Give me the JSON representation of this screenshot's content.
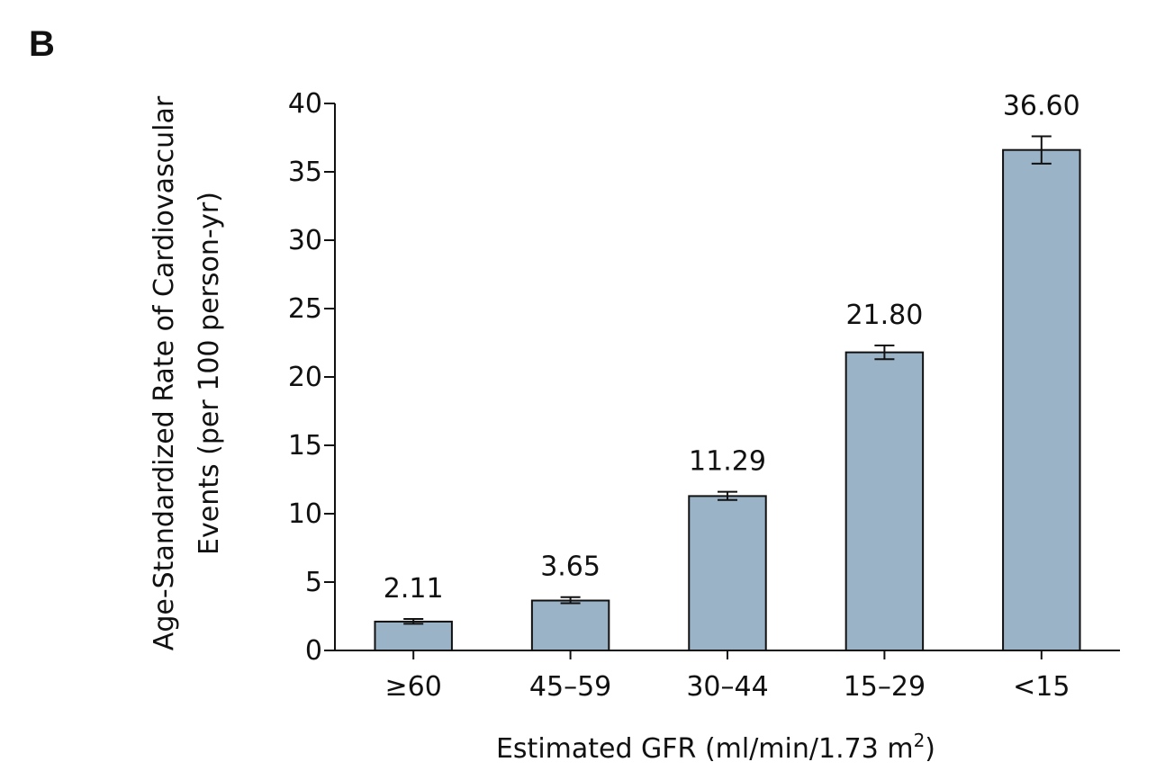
{
  "chart_data": {
    "type": "bar",
    "panel_label": "B",
    "categories": [
      "≥60",
      "45–59",
      "30–44",
      "15–29",
      "<15"
    ],
    "values": [
      2.11,
      3.65,
      11.29,
      21.8,
      36.6
    ],
    "data_labels": [
      "2.11",
      "3.65",
      "11.29",
      "21.80",
      "36.60"
    ],
    "error_upper": [
      2.3,
      3.9,
      11.6,
      22.3,
      37.6
    ],
    "error_lower": [
      1.95,
      3.45,
      11.0,
      21.3,
      35.6
    ],
    "ylim": [
      0,
      40
    ],
    "yticks": [
      0,
      5,
      10,
      15,
      20,
      25,
      30,
      35,
      40
    ],
    "ylabel_line1": "Age-Standardized Rate of Cardiovascular",
    "ylabel_line2": "Events (per 100 person-yr)",
    "xlabel_prefix": "Estimated GFR (ml/min/1.73 m",
    "xlabel_sup": "2",
    "xlabel_suffix": ")",
    "bar_color": "#9ab3c6",
    "bar_stroke": "#111111",
    "grid": false
  }
}
